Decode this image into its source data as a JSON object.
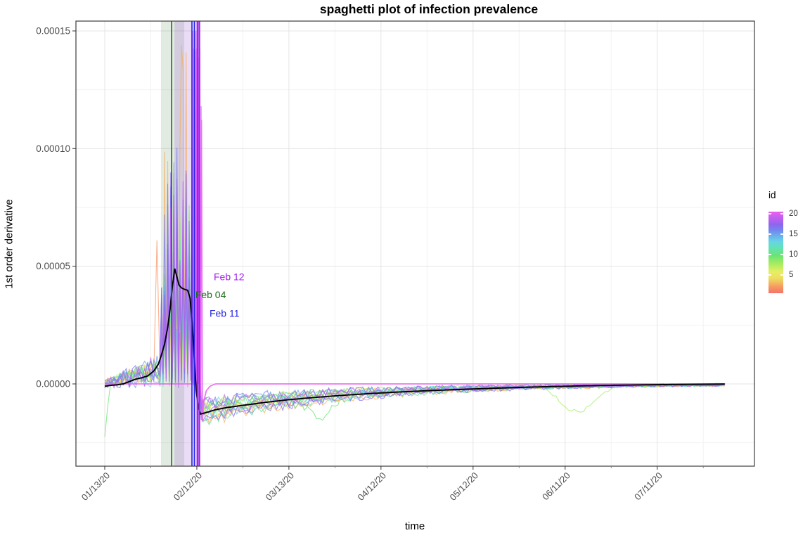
{
  "chart_data": {
    "type": "line",
    "title": "spaghetti plot of infection prevalence",
    "xlabel": "time",
    "ylabel": "1st order derivative",
    "x_axis": {
      "start_date": "01/13/20",
      "tick_labels": [
        "01/13/20",
        "02/12/20",
        "03/13/20",
        "04/12/20",
        "05/12/20",
        "06/11/20",
        "07/11/20"
      ],
      "tick_days": [
        0,
        30,
        60,
        90,
        120,
        150,
        180
      ],
      "minor_tick_days": [
        15,
        45,
        75,
        105,
        135,
        165,
        195
      ],
      "days_total": 202
    },
    "y_axis": {
      "tick_labels": [
        "0.00000",
        "0.00005",
        "0.00010",
        "0.00015"
      ],
      "tick_values_e6": [
        0,
        50,
        100,
        150
      ],
      "minor_values_e6": [
        -25,
        25,
        75,
        125
      ],
      "range_e6": [
        -35,
        154
      ]
    },
    "grid": {
      "major_color": "#e4e4e4",
      "minor_color": "#f2f2f2",
      "border_color": "#3c3c3c",
      "tick_color": "#333333",
      "tick_label_color": "#4d4d4d"
    },
    "legend": {
      "title": "id",
      "ticks": [
        20,
        15,
        10,
        5
      ],
      "range": [
        0.5,
        20.5
      ],
      "gradient_bottom_to_top": [
        {
          "c": "#f4746a",
          "p": 0
        },
        {
          "c": "#f79a60",
          "p": 8
        },
        {
          "c": "#eedd60",
          "p": 18
        },
        {
          "c": "#e8ee63",
          "p": 26
        },
        {
          "c": "#a8ec60",
          "p": 36
        },
        {
          "c": "#6ae573",
          "p": 46
        },
        {
          "c": "#64e2b2",
          "p": 55
        },
        {
          "c": "#66d6e4",
          "p": 63
        },
        {
          "c": "#6bb0ee",
          "p": 70
        },
        {
          "c": "#7187ef",
          "p": 77
        },
        {
          "c": "#8d66ee",
          "p": 84
        },
        {
          "c": "#c05ff0",
          "p": 92
        },
        {
          "c": "#ea62ee",
          "p": 100
        }
      ]
    },
    "events": [
      {
        "label": "Feb 04",
        "color": "#1c6e1c",
        "line_days": [
          21.8
        ],
        "line_width": 1.6,
        "band_days": [
          18.3,
          25.9
        ],
        "band_color": "rgba(60,120,60,0.15)",
        "label_day": 34.5,
        "label_value_e6": 36.5
      },
      {
        "label": "Feb 11",
        "color": "#2525e8",
        "line_days": [
          28.4,
          29.2
        ],
        "line_width": 1.6,
        "band_days": null,
        "band_color": null,
        "label_day": 39,
        "label_value_e6": 28.5
      },
      {
        "label": "Feb 12",
        "color": "#a21ef0",
        "line_days": [
          30.2,
          30.8
        ],
        "line_width": 2.2,
        "band_days": [
          22.7,
          31.2
        ],
        "band_color": "rgba(150,80,210,0.20)",
        "label_day": 40.5,
        "label_value_e6": 44
      }
    ],
    "mean_line": {
      "color": "#000000",
      "points_day_value_e6": [
        [
          0,
          -1
        ],
        [
          2,
          -0.6
        ],
        [
          4,
          -0.4
        ],
        [
          6,
          0
        ],
        [
          8,
          1
        ],
        [
          10,
          2
        ],
        [
          12,
          2.6
        ],
        [
          14,
          3.4
        ],
        [
          16,
          5.5
        ],
        [
          17.5,
          8.5
        ],
        [
          18.5,
          12.5
        ],
        [
          19.5,
          17
        ],
        [
          20.5,
          24
        ],
        [
          21.3,
          32
        ],
        [
          22,
          41
        ],
        [
          22.8,
          49
        ],
        [
          23.5,
          45.5
        ],
        [
          24.2,
          42
        ],
        [
          25,
          40.8
        ],
        [
          26,
          40.2
        ],
        [
          27,
          39.8
        ],
        [
          27.8,
          36.5
        ],
        [
          28.5,
          26
        ],
        [
          29.2,
          10
        ],
        [
          29.8,
          -3
        ],
        [
          30.5,
          -10
        ],
        [
          31.2,
          -12.8
        ],
        [
          33,
          -12.2
        ],
        [
          36,
          -11
        ],
        [
          40,
          -10
        ],
        [
          45,
          -9.1
        ],
        [
          52,
          -7.9
        ],
        [
          60,
          -6.7
        ],
        [
          68,
          -5.8
        ],
        [
          76,
          -5
        ],
        [
          85,
          -4.2
        ],
        [
          95,
          -3.5
        ],
        [
          105,
          -2.9
        ],
        [
          115,
          -2.4
        ],
        [
          125,
          -1.9
        ],
        [
          135,
          -1.5
        ],
        [
          145,
          -1.15
        ],
        [
          155,
          -0.85
        ],
        [
          165,
          -0.6
        ],
        [
          175,
          -0.4
        ],
        [
          185,
          -0.25
        ],
        [
          195,
          -0.12
        ],
        [
          202,
          -0.05
        ]
      ]
    },
    "series_model": {
      "seed": 1337,
      "n_series": 20,
      "unit": "1e-6",
      "phase1_days": [
        0,
        18
      ],
      "spike_days": [
        18,
        31
      ],
      "crash_day": 31.4,
      "recovery": {
        "depth_range_e6": [
          7,
          16
        ],
        "tau_days": 50,
        "noise_e6": 2.8,
        "noise_tau": 75
      },
      "peaks_e6": [
        55,
        62,
        144,
        70,
        48,
        58,
        75,
        85,
        60,
        52,
        65,
        90,
        58,
        95,
        112,
        100,
        80,
        92,
        150,
        150
      ],
      "flat_zero_ids": [
        19,
        20
      ],
      "special": {
        "early_spike": {
          "id": 2,
          "day": 17,
          "value_e6": 61
        },
        "start_dip": {
          "id": 9,
          "value_e6": -22.5
        },
        "mid_dip": {
          "id": 9,
          "day": 70,
          "depth_e6": 10,
          "width_days": 6
        },
        "late_dip": {
          "id": 7,
          "day": 154,
          "depth_e6": 11,
          "width_days": 8
        }
      },
      "colors": [
        "#f4746a",
        "#f7915f",
        "#f5ad5e",
        "#eecb5e",
        "#ece962",
        "#c9ee60",
        "#a5ec5e",
        "#82e967",
        "#68e470",
        "#63e492",
        "#63e2b6",
        "#65d8e2",
        "#69bdee",
        "#6f9bf0",
        "#7177ee",
        "#8666ee",
        "#a35ff0",
        "#c25ff0",
        "#dc5ff2",
        "#ea62ee"
      ]
    }
  }
}
